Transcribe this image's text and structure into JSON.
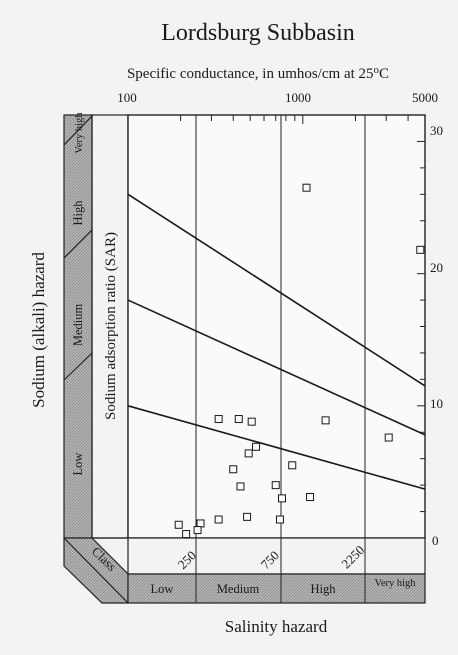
{
  "chart_data": {
    "type": "scatter",
    "title": "Lordsburg Subbasin",
    "top_axis_label": "Specific conductance, in umhos/cm at 25",
    "top_axis_label_degree": "o",
    "top_axis_label_unit": "C",
    "top_ticks": [
      "100",
      "1000",
      "5000"
    ],
    "top_axis_scale": "log",
    "top_axis_range": [
      100,
      5000
    ],
    "y_axis_label": "Sodium adsorption ratio (SAR)",
    "y_ticks": [
      "30",
      "20",
      "10",
      "0"
    ],
    "ylim": [
      0,
      32
    ],
    "left_axis_label": "Sodium (alkali) hazard",
    "sodium_hazard_classes": [
      "Low",
      "Medium",
      "High",
      "Very high"
    ],
    "class_label": "Class",
    "salinity_class_ticks": [
      "250",
      "750",
      "2250"
    ],
    "salinity_hazard_classes": [
      "Low",
      "Medium",
      "High",
      "Very high"
    ],
    "xlabel": "Salinity hazard",
    "points": [
      {
        "x": 1050,
        "y": 26.5
      },
      {
        "x": 4700,
        "y": 21.8
      },
      {
        "x": 330,
        "y": 9.0
      },
      {
        "x": 430,
        "y": 9.0
      },
      {
        "x": 510,
        "y": 8.8
      },
      {
        "x": 1350,
        "y": 8.9
      },
      {
        "x": 3100,
        "y": 7.6
      },
      {
        "x": 540,
        "y": 6.9
      },
      {
        "x": 490,
        "y": 6.4
      },
      {
        "x": 870,
        "y": 5.5
      },
      {
        "x": 400,
        "y": 5.2
      },
      {
        "x": 440,
        "y": 3.9
      },
      {
        "x": 700,
        "y": 4.0
      },
      {
        "x": 760,
        "y": 3.0
      },
      {
        "x": 1100,
        "y": 3.1
      },
      {
        "x": 480,
        "y": 1.6
      },
      {
        "x": 740,
        "y": 1.4
      },
      {
        "x": 195,
        "y": 1.0
      },
      {
        "x": 260,
        "y": 1.1
      },
      {
        "x": 330,
        "y": 1.4
      },
      {
        "x": 250,
        "y": 0.6
      },
      {
        "x": 215,
        "y": 0.3
      }
    ],
    "boundary_lines": [
      {
        "x": [
          100,
          5000
        ],
        "y": [
          26,
          11.5
        ]
      },
      {
        "x": [
          100,
          5000
        ],
        "y": [
          18,
          7.8
        ]
      },
      {
        "x": [
          100,
          5000
        ],
        "y": [
          10,
          3.7
        ]
      }
    ],
    "grid": true
  }
}
